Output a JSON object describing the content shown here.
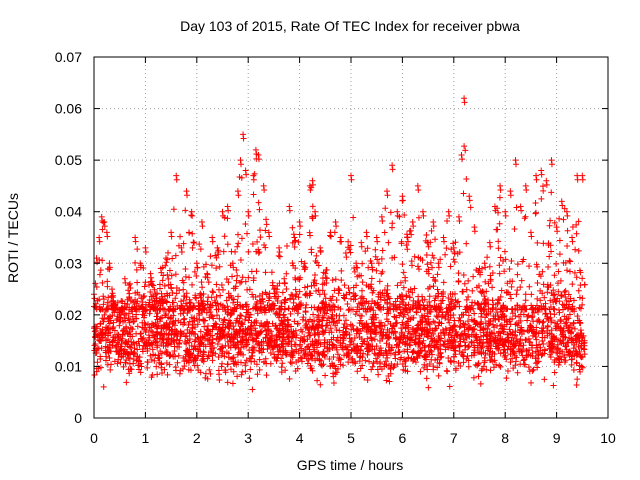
{
  "chart_data": {
    "type": "scatter",
    "title": "Day 103 of 2015, Rate Of TEC Index for receiver pbwa",
    "xlabel": "GPS time / hours",
    "ylabel": "ROTI / TECUs",
    "xlim": [
      0,
      10
    ],
    "ylim": [
      0,
      0.07
    ],
    "xticks": [
      "0",
      "1",
      "2",
      "3",
      "4",
      "5",
      "6",
      "7",
      "8",
      "9",
      "10"
    ],
    "yticks": [
      "0",
      "0.01",
      "0.02",
      "0.03",
      "0.04",
      "0.05",
      "0.06",
      "0.07"
    ],
    "grid": true,
    "marker": "+",
    "color": "#ff0000",
    "x_range_of_data": [
      0,
      9.55
    ],
    "series": [
      {
        "name": "ROTI",
        "x": [
          0.0,
          0.05,
          0.1,
          0.15,
          0.2,
          0.25,
          0.3,
          0.35,
          0.4,
          0.5,
          0.6,
          0.7,
          0.8,
          0.9,
          1.0,
          1.1,
          1.2,
          1.3,
          1.4,
          1.5,
          1.6,
          1.7,
          1.8,
          1.9,
          2.0,
          2.1,
          2.2,
          2.3,
          2.4,
          2.5,
          2.6,
          2.7,
          2.8,
          2.85,
          2.9,
          2.95,
          3.0,
          3.1,
          3.15,
          3.2,
          3.3,
          3.4,
          3.5,
          3.6,
          3.7,
          3.8,
          3.9,
          4.0,
          4.1,
          4.2,
          4.25,
          4.3,
          4.4,
          4.5,
          4.6,
          4.7,
          4.8,
          4.9,
          5.0,
          5.1,
          5.2,
          5.3,
          5.4,
          5.5,
          5.6,
          5.7,
          5.8,
          5.9,
          6.0,
          6.1,
          6.2,
          6.3,
          6.4,
          6.5,
          6.6,
          6.7,
          6.8,
          6.9,
          7.0,
          7.1,
          7.15,
          7.2,
          7.3,
          7.4,
          7.5,
          7.6,
          7.7,
          7.8,
          7.9,
          8.0,
          8.1,
          8.2,
          8.3,
          8.4,
          8.5,
          8.6,
          8.7,
          8.8,
          8.9,
          9.0,
          9.1,
          9.2,
          9.3,
          9.4,
          9.5
        ],
        "y": [
          0.024,
          0.031,
          0.035,
          0.039,
          0.038,
          0.036,
          0.03,
          0.025,
          0.022,
          0.02,
          0.027,
          0.026,
          0.035,
          0.03,
          0.033,
          0.028,
          0.024,
          0.029,
          0.031,
          0.036,
          0.047,
          0.033,
          0.044,
          0.04,
          0.03,
          0.038,
          0.028,
          0.035,
          0.033,
          0.04,
          0.041,
          0.03,
          0.044,
          0.05,
          0.055,
          0.048,
          0.04,
          0.047,
          0.052,
          0.051,
          0.045,
          0.036,
          0.025,
          0.033,
          0.027,
          0.041,
          0.035,
          0.038,
          0.03,
          0.045,
          0.046,
          0.04,
          0.033,
          0.028,
          0.036,
          0.038,
          0.035,
          0.032,
          0.047,
          0.03,
          0.034,
          0.036,
          0.03,
          0.035,
          0.039,
          0.044,
          0.049,
          0.04,
          0.043,
          0.035,
          0.038,
          0.045,
          0.04,
          0.034,
          0.038,
          0.03,
          0.035,
          0.04,
          0.033,
          0.039,
          0.051,
          0.062,
          0.043,
          0.037,
          0.029,
          0.03,
          0.034,
          0.041,
          0.045,
          0.04,
          0.044,
          0.05,
          0.041,
          0.045,
          0.036,
          0.047,
          0.048,
          0.046,
          0.05,
          0.037,
          0.042,
          0.04,
          0.035,
          0.047,
          0.047
        ]
      }
    ],
    "typical_band": {
      "description": "dense cloud of points between lower and upper envelope",
      "lower": 0.005,
      "center": 0.013,
      "upper": 0.025
    }
  }
}
